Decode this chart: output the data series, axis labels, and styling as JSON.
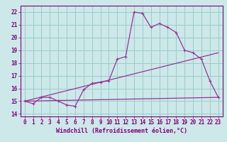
{
  "xlabel": "Windchill (Refroidissement éolien,°C)",
  "bg_color": "#cce8e8",
  "grid_color": "#99cccc",
  "line_color": "#993399",
  "line1_x": [
    0,
    1,
    2,
    3,
    4,
    5,
    6,
    7,
    8,
    9,
    10,
    11,
    12,
    13,
    14,
    15,
    16,
    17,
    18,
    19,
    20,
    21,
    22,
    23
  ],
  "line1_y": [
    15.0,
    14.8,
    15.3,
    15.3,
    15.0,
    14.7,
    14.6,
    15.9,
    16.4,
    16.5,
    16.6,
    18.3,
    18.5,
    22.0,
    21.9,
    20.8,
    21.1,
    20.8,
    20.4,
    19.0,
    18.8,
    18.3,
    16.6,
    15.3
  ],
  "line2_x": [
    0,
    23
  ],
  "line2_y": [
    15.0,
    15.3
  ],
  "line3_x": [
    0,
    23
  ],
  "line3_y": [
    15.0,
    18.8
  ],
  "ylim": [
    13.8,
    22.5
  ],
  "xlim": [
    -0.5,
    23.5
  ],
  "yticks": [
    14,
    15,
    16,
    17,
    18,
    19,
    20,
    21,
    22
  ],
  "xticks": [
    0,
    1,
    2,
    3,
    4,
    5,
    6,
    7,
    8,
    9,
    10,
    11,
    12,
    13,
    14,
    15,
    16,
    17,
    18,
    19,
    20,
    21,
    22,
    23
  ],
  "tick_fontsize": 5.5,
  "xlabel_fontsize": 6.0,
  "spine_color": "#800080",
  "tick_color": "#800080",
  "label_color": "#800080"
}
